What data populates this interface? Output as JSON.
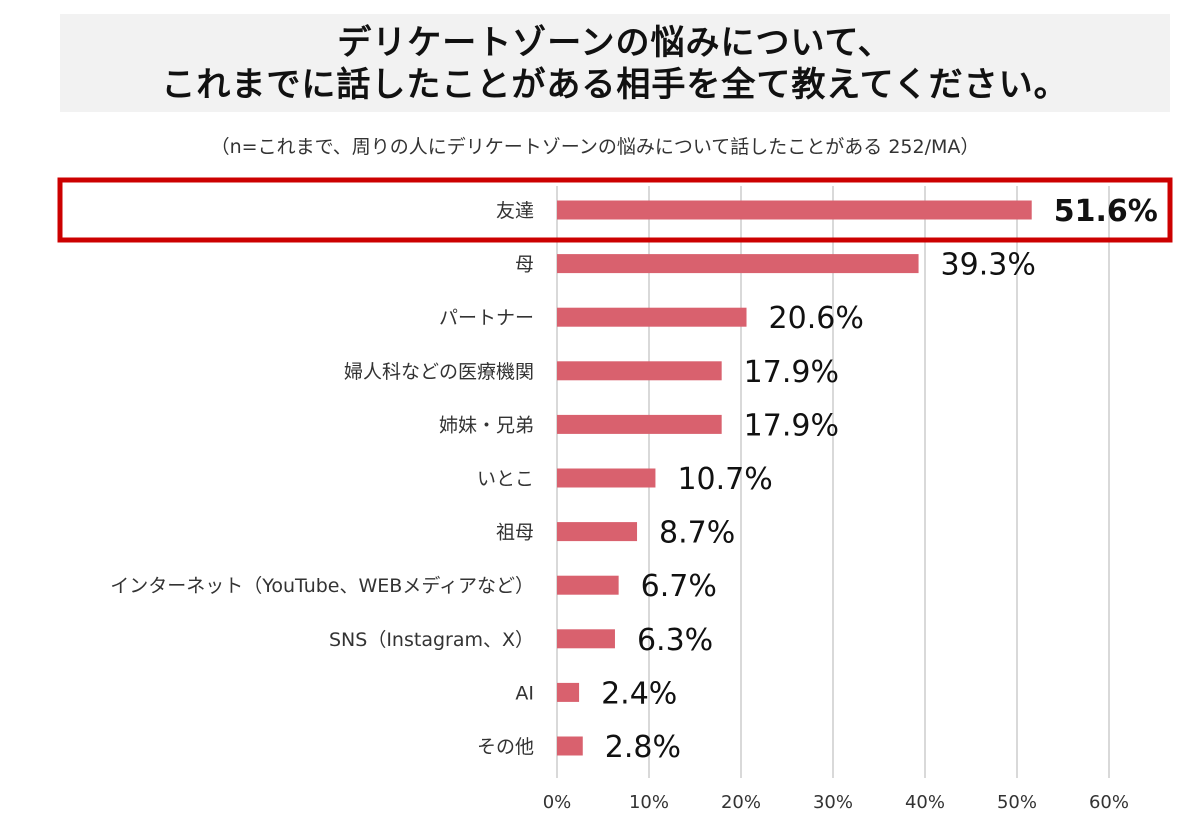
{
  "title": {
    "line1": "デリケートゾーンの悩みについて、",
    "line2": "これまでに話したことがある相手を全て教えてください。"
  },
  "subtitle": "（n=これまで、周りの人にデリケートゾーンの悩みについて話したことがある 252/MA）",
  "colors": {
    "bar": "#d9616e",
    "highlight": "#cc0000",
    "grid": "#d9d9d9"
  },
  "chart_data": {
    "type": "bar",
    "orientation": "horizontal",
    "categories": [
      "友達",
      "母",
      "パートナー",
      "婦人科などの医療機関",
      "姉妹・兄弟",
      "いとこ",
      "祖母",
      "インターネット（YouTube、WEBメディアなど）",
      "SNS（Instagram、X）",
      "AI",
      "その他"
    ],
    "values": [
      51.6,
      39.3,
      20.6,
      17.9,
      17.9,
      10.7,
      8.7,
      6.7,
      6.3,
      2.4,
      2.8
    ],
    "value_labels": [
      "51.6%",
      "39.3%",
      "20.6%",
      "17.9%",
      "17.9%",
      "10.7%",
      "8.7%",
      "6.7%",
      "6.3%",
      "2.4%",
      "2.8%"
    ],
    "highlight_index": 0,
    "xlim": [
      0,
      60
    ],
    "xticks": [
      0,
      10,
      20,
      30,
      40,
      50,
      60
    ],
    "xtick_labels": [
      "0%",
      "10%",
      "20%",
      "30%",
      "40%",
      "50%",
      "60%"
    ],
    "grid": true,
    "title": "デリケートゾーンの悩みについて、これまでに話したことがある相手を全て教えてください。"
  }
}
